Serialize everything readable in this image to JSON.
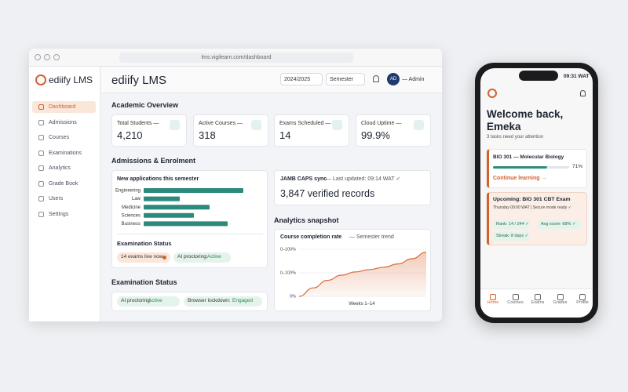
{
  "browser": {
    "url": "lms.vigilearn.com/dashboard"
  },
  "sidebar": {
    "brand": "ediify LMS",
    "nav": [
      "Dashboard",
      "Admissions",
      "Courses",
      "Examinations",
      "Analytics",
      "Grade Book",
      "Users",
      "Settings"
    ]
  },
  "topbar": {
    "title": "ediify LMS",
    "year": "2024/2025",
    "term": "Semester",
    "avatar": "AD",
    "user": "— Admin"
  },
  "overview": {
    "title": "Academic Overview",
    "cards": [
      {
        "label": "Total Students —",
        "value": "4,210"
      },
      {
        "label": "Active Courses —",
        "value": "318"
      },
      {
        "label": "Exams Scheduled —",
        "value": "14"
      },
      {
        "label": "Cloud Uptime —",
        "value": "99.9%"
      }
    ]
  },
  "admissions": {
    "title": "Admissions & Enrolment",
    "chart_data": {
      "type": "bar",
      "title": "New applications this semester",
      "categories": [
        "Engineering",
        "Law",
        "Medicine",
        "Sciences",
        "Business"
      ],
      "values": [
        127,
        46,
        84,
        64,
        107
      ],
      "color": "#2b8a7c"
    },
    "exam_status": {
      "title": "Examination Status",
      "live": "14 exams live now",
      "label": "AI proctoring:",
      "status": "Active"
    }
  },
  "exam_panel": {
    "title": "Examination Status",
    "chips": [
      {
        "label": "AI proctoring:",
        "status": "Active"
      },
      {
        "label": "Browser lockdown:",
        "status": "Engaged"
      }
    ]
  },
  "jamb": {
    "title": "JAMB CAPS sync",
    "updated": "— Last updated: 09:14 WAT ✓",
    "records": "3,847 verified records"
  },
  "analytics": {
    "title": "Analytics snapshot",
    "chart_data": {
      "type": "area",
      "title": "Course completion rate",
      "subtitle": "— Semester trend",
      "values": [
        0,
        18,
        34,
        45,
        52,
        57,
        62,
        69,
        80,
        94
      ],
      "ylim": [
        0,
        100
      ],
      "yticks": [
        {
          "value": 0,
          "label": "0%"
        },
        {
          "value": 50,
          "label": "0–100%"
        },
        {
          "value": 100,
          "label": "0–100%"
        }
      ],
      "xlabel": "Weeks 1–14",
      "color": "#d9693a"
    }
  },
  "phone": {
    "time": "09:31 WAT",
    "greeting": "Welcome back, Emeka",
    "tasks": "3 tasks need your attention",
    "course": {
      "name": "BIO 301 — Molecular Biology",
      "progress": 71,
      "progress_label": "71%",
      "action": "Continue learning →"
    },
    "exam": {
      "title": "Upcoming: BIO 301 CBT Exam",
      "detail": "Thursday 09:00 WAT | Secure mode ready ✓",
      "chips": [
        "Rank: 14 / 244 ✓",
        "Avg score: 68% ✓",
        "Streak: 8 days ✓"
      ]
    },
    "tabs": [
      "Home",
      "Courses",
      "Exams",
      "Grades",
      "Profile"
    ]
  }
}
